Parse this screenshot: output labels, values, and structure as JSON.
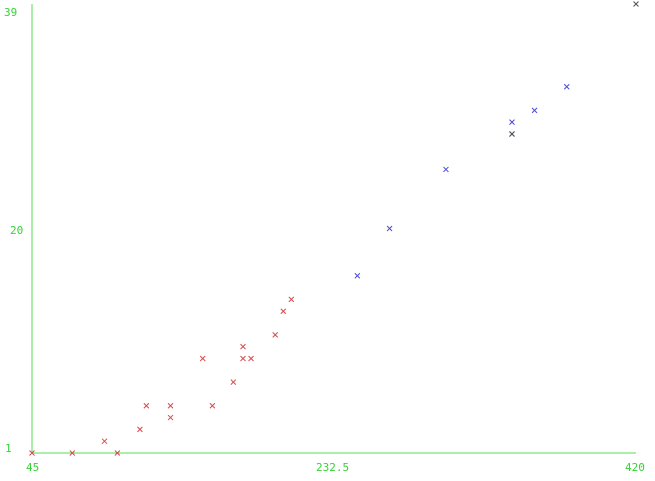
{
  "chart_data": {
    "type": "scatter",
    "title": "",
    "xlabel": "",
    "ylabel": "",
    "xlim": [
      45,
      420
    ],
    "ylim": [
      1,
      39
    ],
    "x_ticks": [
      "45",
      "232.5",
      "420"
    ],
    "y_ticks": [
      "1",
      "20",
      "39"
    ],
    "grid": false,
    "legend": "none",
    "axis_color": "#55dd55",
    "series": [
      {
        "color": "#d94a4a",
        "points": [
          [
            45,
            1
          ],
          [
            70,
            1
          ],
          [
            90,
            2
          ],
          [
            98,
            1
          ],
          [
            112,
            3
          ],
          [
            116,
            5
          ],
          [
            131,
            4
          ],
          [
            131,
            5
          ],
          [
            151,
            9
          ],
          [
            157,
            5
          ],
          [
            170,
            7
          ],
          [
            176,
            10
          ],
          [
            176,
            9
          ],
          [
            181,
            9
          ],
          [
            196,
            11
          ],
          [
            201,
            13
          ],
          [
            206,
            14
          ]
        ]
      },
      {
        "color": "#4a4ad9",
        "points": [
          [
            247,
            16
          ],
          [
            267,
            20
          ],
          [
            302,
            25
          ],
          [
            343,
            28
          ],
          [
            343,
            29
          ],
          [
            357,
            30
          ],
          [
            377,
            32
          ]
        ]
      },
      {
        "color": "#555555",
        "points": [
          [
            343,
            28
          ],
          [
            420,
            39
          ]
        ]
      }
    ]
  }
}
